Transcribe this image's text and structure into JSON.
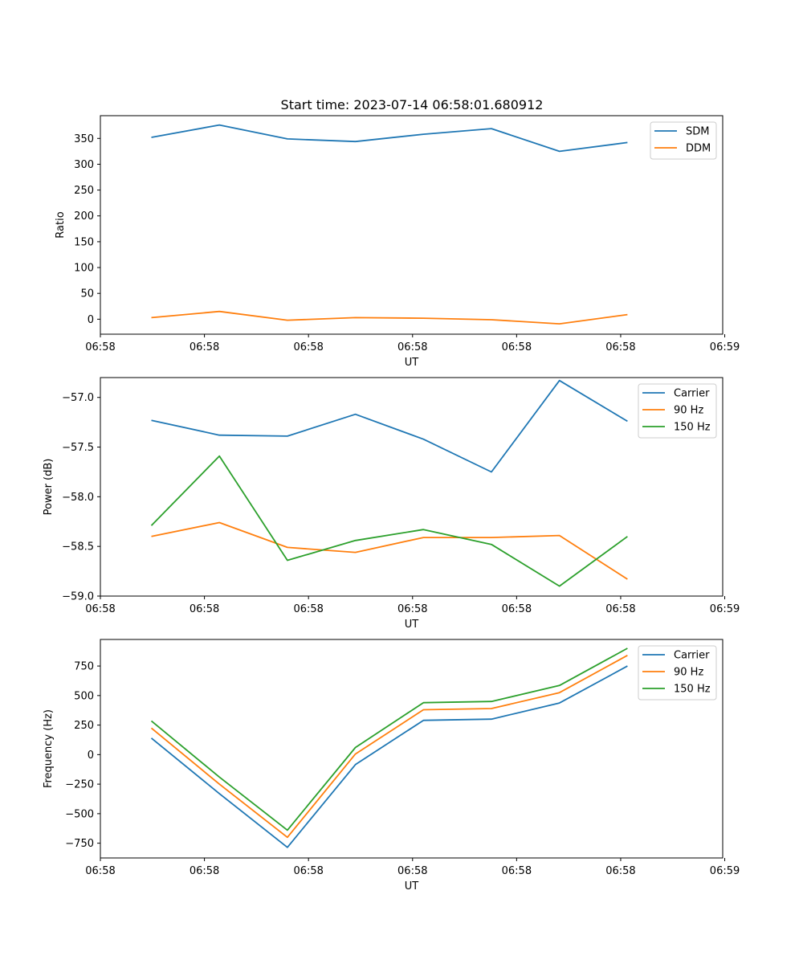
{
  "figure": {
    "title": "Start time: 2023-07-14 06:58:01.680912"
  },
  "colors": {
    "blue": "#1f77b4",
    "orange": "#ff7f0e",
    "green": "#2ca02c"
  },
  "chart_data": [
    {
      "type": "line",
      "title": "Start time: 2023-07-14 06:58:01.680912",
      "xlabel": "UT",
      "ylabel": "Ratio",
      "x_index": [
        0,
        1,
        2,
        3,
        4,
        5,
        6,
        7
      ],
      "xlim": [
        -0.75,
        8.4
      ],
      "ylim": [
        -29,
        394
      ],
      "xticks": [
        -0.75,
        0.78,
        2.31,
        3.84,
        5.37,
        6.9,
        8.43
      ],
      "xtick_labels": [
        "06:58",
        "06:58",
        "06:58",
        "06:58",
        "06:58",
        "06:58",
        "06:59"
      ],
      "yticks": [
        0,
        50,
        100,
        150,
        200,
        250,
        300,
        350
      ],
      "ytick_labels": [
        "0",
        "50",
        "100",
        "150",
        "200",
        "250",
        "300",
        "350"
      ],
      "legend": "top-right",
      "series": [
        {
          "name": "SDM",
          "color": "#1f77b4",
          "values": [
            352,
            376,
            349,
            344,
            358,
            369,
            325,
            342
          ]
        },
        {
          "name": "DDM",
          "color": "#ff7f0e",
          "values": [
            3,
            15,
            -2,
            3,
            2,
            -1,
            -9,
            9
          ]
        }
      ]
    },
    {
      "type": "line",
      "xlabel": "UT",
      "ylabel": "Power (dB)",
      "x_index": [
        0,
        1,
        2,
        3,
        4,
        5,
        6,
        7
      ],
      "xlim": [
        -0.75,
        8.4
      ],
      "ylim": [
        -59.0,
        -56.8
      ],
      "xticks": [
        -0.75,
        0.78,
        2.31,
        3.84,
        5.37,
        6.9,
        8.43
      ],
      "xtick_labels": [
        "06:58",
        "06:58",
        "06:58",
        "06:58",
        "06:58",
        "06:58",
        "06:59"
      ],
      "yticks": [
        -59.0,
        -58.5,
        -58.0,
        -57.5,
        -57.0
      ],
      "ytick_labels": [
        "−59.0",
        "−58.5",
        "−58.0",
        "−57.5",
        "−57.0"
      ],
      "legend": "top-right",
      "series": [
        {
          "name": "Carrier",
          "color": "#1f77b4",
          "values": [
            -57.23,
            -57.38,
            -57.39,
            -57.17,
            -57.42,
            -57.75,
            -56.83,
            -57.24
          ]
        },
        {
          "name": "90 Hz",
          "color": "#ff7f0e",
          "values": [
            -58.4,
            -58.26,
            -58.51,
            -58.56,
            -58.41,
            -58.41,
            -58.39,
            -58.83
          ]
        },
        {
          "name": "150 Hz",
          "color": "#2ca02c",
          "values": [
            -58.29,
            -57.59,
            -58.64,
            -58.44,
            -58.33,
            -58.48,
            -58.9,
            -58.4
          ]
        }
      ]
    },
    {
      "type": "line",
      "xlabel": "UT",
      "ylabel": "Frequency (Hz)",
      "x_index": [
        0,
        1,
        2,
        3,
        4,
        5,
        6,
        7
      ],
      "xlim": [
        -0.75,
        8.4
      ],
      "ylim": [
        -875,
        975
      ],
      "xticks": [
        -0.75,
        0.78,
        2.31,
        3.84,
        5.37,
        6.9,
        8.43
      ],
      "xtick_labels": [
        "06:58",
        "06:58",
        "06:58",
        "06:58",
        "06:58",
        "06:58",
        "06:59"
      ],
      "yticks": [
        -750,
        -500,
        -250,
        0,
        250,
        500,
        750
      ],
      "ytick_labels": [
        "−750",
        "−500",
        "−250",
        "0",
        "250",
        "500",
        "750"
      ],
      "legend": "top-right",
      "series": [
        {
          "name": "Carrier",
          "color": "#1f77b4",
          "values": [
            140,
            -330,
            -785,
            -85,
            290,
            300,
            437,
            750
          ]
        },
        {
          "name": "90 Hz",
          "color": "#ff7f0e",
          "values": [
            225,
            -250,
            -700,
            5,
            380,
            390,
            525,
            840
          ]
        },
        {
          "name": "150 Hz",
          "color": "#2ca02c",
          "values": [
            285,
            -190,
            -640,
            60,
            440,
            450,
            585,
            900
          ]
        }
      ]
    }
  ]
}
